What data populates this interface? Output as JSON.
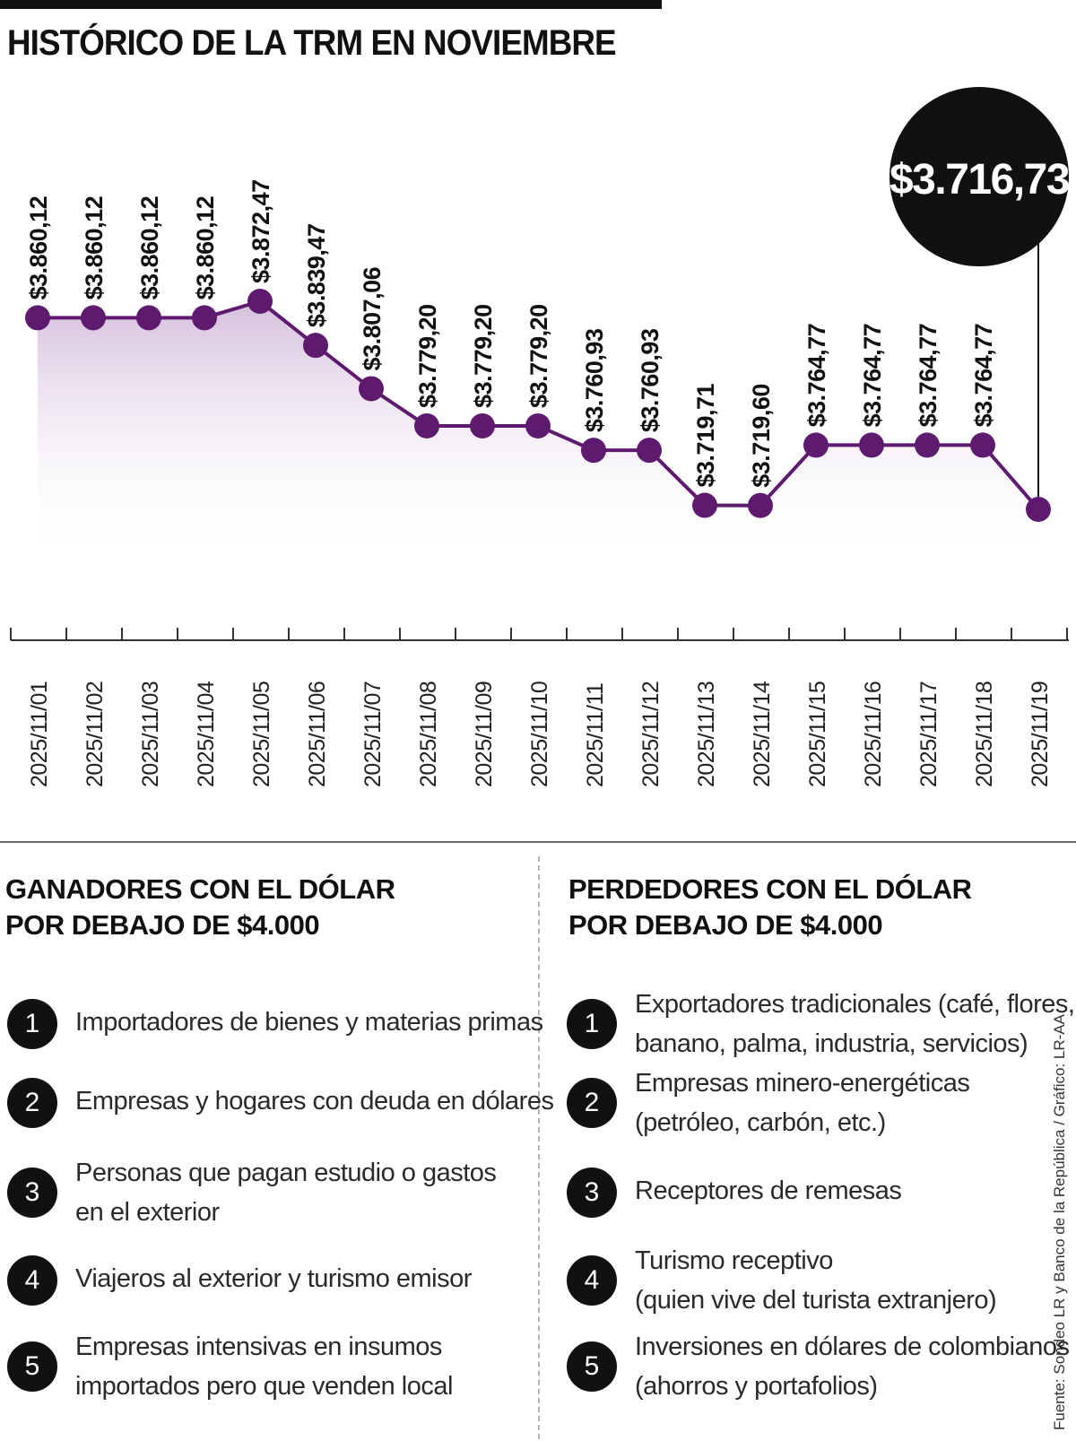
{
  "title": "HISTÓRICO DE LA TRM EN NOVIEMBRE",
  "colors": {
    "line": "#5e1a6e",
    "fill": "#d9c4df",
    "ink": "#111111"
  },
  "chart_data": {
    "type": "line",
    "title": "HISTÓRICO DE LA TRM EN NOVIEMBRE",
    "x": [
      "2025/11/01",
      "2025/11/02",
      "2025/11/03",
      "2025/11/04",
      "2025/11/05",
      "2025/11/06",
      "2025/11/07",
      "2025/11/08",
      "2025/11/09",
      "2025/11/10",
      "2025/11/11",
      "2025/11/12",
      "2025/11/13",
      "2025/11/14",
      "2025/11/15",
      "2025/11/16",
      "2025/11/17",
      "2025/11/18",
      "2025/11/19"
    ],
    "values": [
      3860.12,
      3860.12,
      3860.12,
      3860.12,
      3872.47,
      3839.47,
      3807.06,
      3779.2,
      3779.2,
      3779.2,
      3760.93,
      3760.93,
      3719.71,
      3719.6,
      3764.77,
      3764.77,
      3764.77,
      3764.77,
      3716.73
    ],
    "labels": [
      "$3.860,12",
      "$3.860,12",
      "$3.860,12",
      "$3.860,12",
      "$3.872,47",
      "$3.839,47",
      "$3.807,06",
      "$3.779,20",
      "$3.779,20",
      "$3.779,20",
      "$3.760,93",
      "$3.760,93",
      "$3.719,71",
      "$3.719,60",
      "$3.764,77",
      "$3.764,77",
      "$3.764,77",
      "$3.764,77"
    ],
    "highlight": "$3.716,73",
    "area_fill": true,
    "grid": false
  },
  "winners": {
    "heading": [
      "GANADORES CON EL DÓLAR",
      "POR DEBAJO DE $4.000"
    ],
    "items": [
      {
        "n": "1",
        "lines": [
          "Importadores de bienes y materias primas"
        ]
      },
      {
        "n": "2",
        "lines": [
          "Empresas y hogares con deuda en dólares"
        ]
      },
      {
        "n": "3",
        "lines": [
          "Personas que pagan estudio o gastos",
          "en el exterior"
        ]
      },
      {
        "n": "4",
        "lines": [
          "Viajeros al exterior y turismo emisor"
        ]
      },
      {
        "n": "5",
        "lines": [
          "Empresas intensivas en insumos",
          "importados pero que venden local"
        ]
      }
    ]
  },
  "losers": {
    "heading": [
      "PERDEDORES CON EL DÓLAR",
      "POR DEBAJO DE $4.000"
    ],
    "items": [
      {
        "n": "1",
        "lines": [
          "Exportadores tradicionales (café, flores,",
          "banano, palma, industria, servicios)"
        ]
      },
      {
        "n": "2",
        "lines": [
          "Empresas minero-energéticas",
          "(petróleo, carbón, etc.)"
        ]
      },
      {
        "n": "3",
        "lines": [
          "Receptores de remesas"
        ]
      },
      {
        "n": "4",
        "lines": [
          "Turismo receptivo",
          "(quien vive del turista extranjero)"
        ]
      },
      {
        "n": "5",
        "lines": [
          "Inversiones en dólares de colombianos",
          "(ahorros y portafolios)"
        ]
      }
    ]
  },
  "source": "Fuente: Sondeo LR y Banco de la República / Gráfico: LR-AA"
}
